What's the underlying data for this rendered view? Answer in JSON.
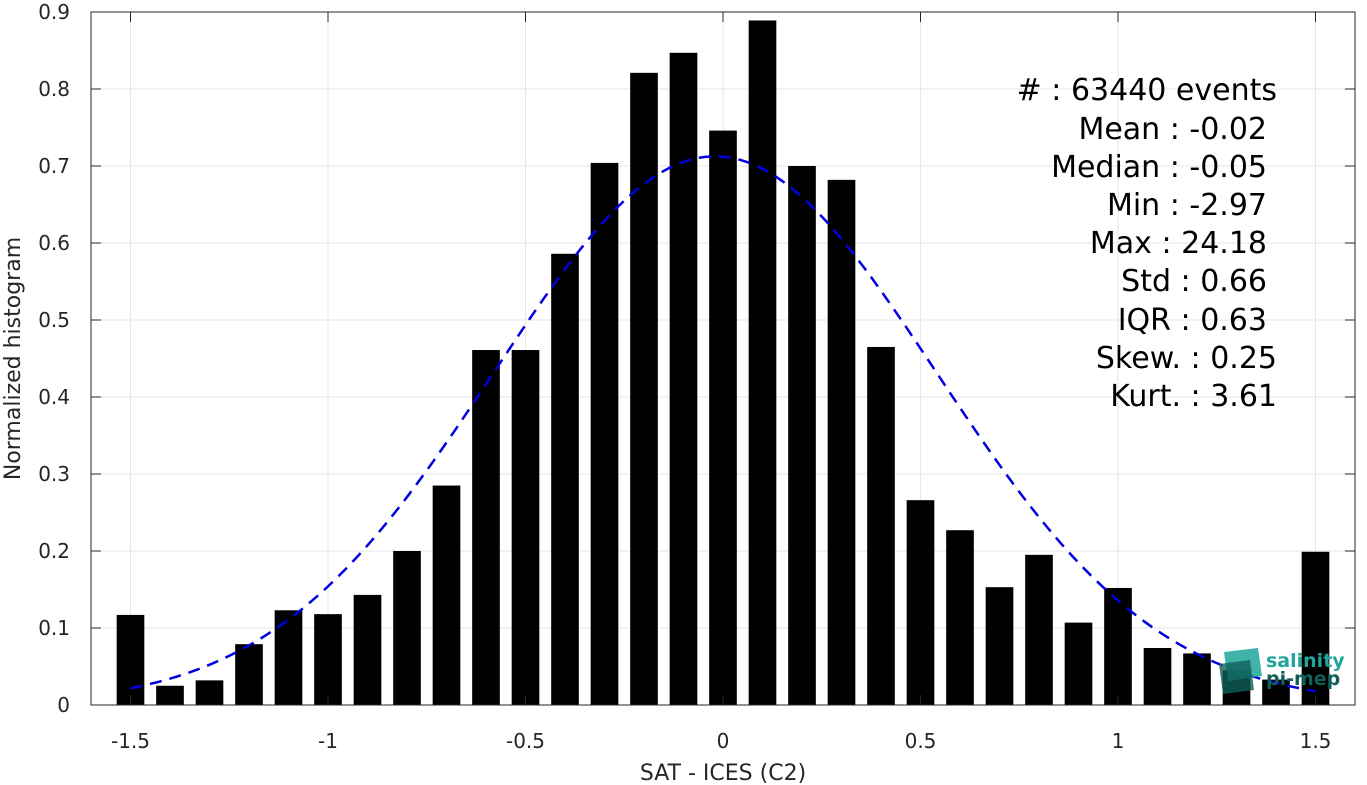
{
  "chart_data": {
    "type": "bar",
    "xlabel": "SAT - ICES (C2)",
    "ylabel": "Normalized histogram",
    "xlim": [
      -1.6,
      1.6
    ],
    "ylim": [
      0,
      0.9
    ],
    "xticks": [
      -1.5,
      -1,
      -0.5,
      0,
      0.5,
      1,
      1.5
    ],
    "xtick_labels": [
      "-1.5",
      "-1",
      "-0.5",
      "0",
      "0.5",
      "1",
      "1.5"
    ],
    "yticks": [
      0,
      0.1,
      0.2,
      0.3,
      0.4,
      0.5,
      0.6,
      0.7,
      0.8,
      0.9
    ],
    "ytick_labels": [
      "0",
      "0.1",
      "0.2",
      "0.3",
      "0.4",
      "0.5",
      "0.6",
      "0.7",
      "0.8",
      "0.9"
    ],
    "grid": true,
    "bar_color": "#000000",
    "curve_color": "#0000e0",
    "bars": {
      "x": [
        -1.5,
        -1.4,
        -1.3,
        -1.2,
        -1.1,
        -1.0,
        -0.9,
        -0.8,
        -0.7,
        -0.6,
        -0.5,
        -0.4,
        -0.3,
        -0.2,
        -0.1,
        0.0,
        0.1,
        0.2,
        0.3,
        0.4,
        0.5,
        0.6,
        0.7,
        0.8,
        0.9,
        1.0,
        1.1,
        1.2,
        1.3,
        1.4,
        1.5
      ],
      "values": [
        0.117,
        0.025,
        0.032,
        0.079,
        0.123,
        0.118,
        0.143,
        0.2,
        0.285,
        0.461,
        0.461,
        0.586,
        0.704,
        0.821,
        0.847,
        0.746,
        0.889,
        0.7,
        0.682,
        0.465,
        0.266,
        0.227,
        0.153,
        0.195,
        0.107,
        0.152,
        0.074,
        0.067,
        0.045,
        0.033,
        0.199
      ]
    },
    "fit_curve": {
      "style": "dashed",
      "mean": -0.02,
      "std": 0.56,
      "x_range": [
        -1.5,
        1.5
      ]
    },
    "stats": [
      "#  : 63440 events",
      "Mean : -0.02",
      "Median : -0.05",
      "Min : -2.97",
      "Max : 24.18",
      "Std : 0.66",
      "IQR : 0.63",
      "Skew. : 0.25",
      "Kurt. : 3.61"
    ]
  },
  "logo": {
    "line1": "salinity",
    "line2": "pi-mep",
    "color1": "#1fa59a",
    "color2": "#0f5f5a"
  }
}
